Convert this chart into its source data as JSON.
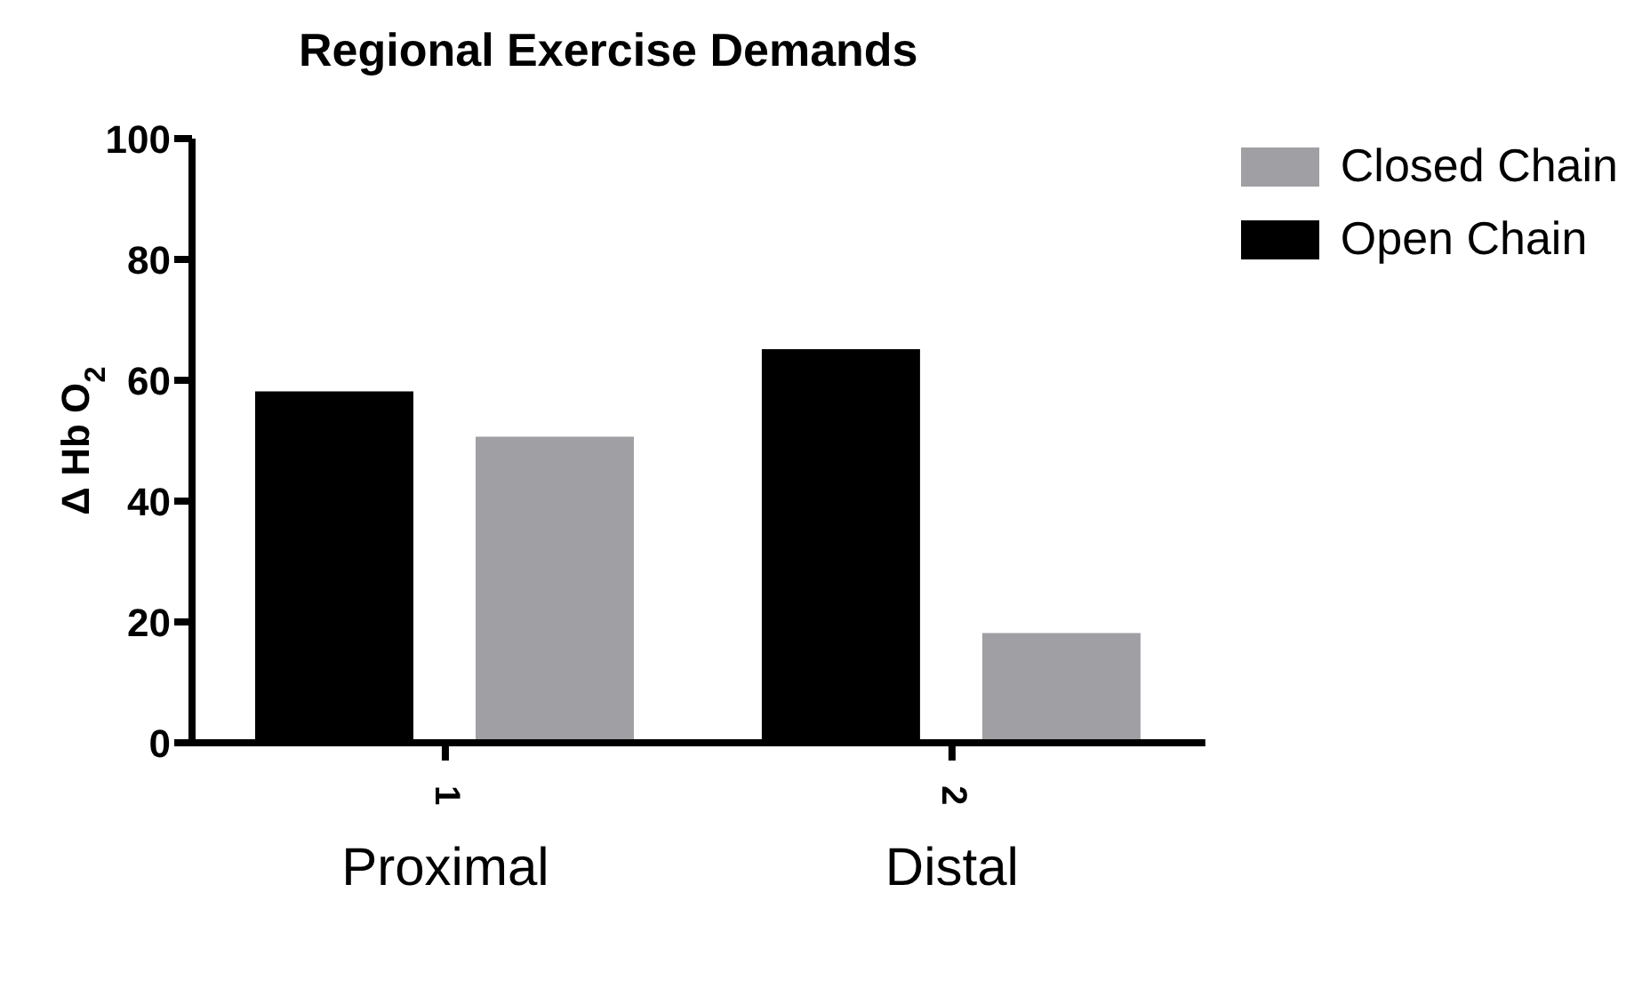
{
  "chart_data": {
    "type": "bar",
    "title": "Regional Exercise Demands",
    "ylabel": "Δ Hb O$_{2}$",
    "categories": [
      "1",
      "2"
    ],
    "series": [
      {
        "name": "Open Chain",
        "color": "#000000",
        "values": [
          58,
          65
        ]
      },
      {
        "name": "Closed Chain",
        "color": "#a0a0a4",
        "values": [
          50.5,
          18
        ]
      }
    ],
    "annotations": [
      "Proximal",
      "Distal"
    ],
    "ylim": [
      0,
      100
    ],
    "yticks": [
      0,
      20,
      40,
      60,
      80,
      100
    ],
    "grid": false,
    "legend": "top right"
  }
}
